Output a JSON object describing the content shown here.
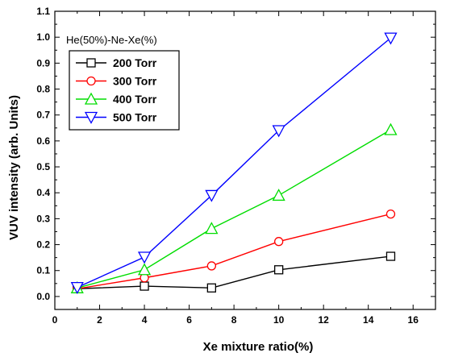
{
  "chart_data": {
    "type": "line",
    "xlabel": "Xe mixture ratio(%)",
    "ylabel": "VUV intensity (arb. Units)",
    "annotation": "He(50%)-Ne-Xe(%)",
    "xlim": [
      0,
      17
    ],
    "ylim": [
      -0.05,
      1.1
    ],
    "x_ticks": [
      "0",
      "2",
      "4",
      "6",
      "8",
      "10",
      "12",
      "14",
      "16"
    ],
    "y_ticks": [
      "0.0",
      "0.1",
      "0.2",
      "0.3",
      "0.4",
      "0.5",
      "0.6",
      "0.7",
      "0.8",
      "0.9",
      "1.0",
      "1.1"
    ],
    "x": [
      1,
      4,
      7,
      10,
      15
    ],
    "legend_position": "top-left",
    "grid": false,
    "series": [
      {
        "name": "200 Torr",
        "values": [
          0.03,
          0.04,
          0.033,
          0.103,
          0.155
        ],
        "color": "#000000",
        "marker": "square"
      },
      {
        "name": "300 Torr",
        "values": [
          0.03,
          0.072,
          0.118,
          0.212,
          0.318
        ],
        "color": "#ff0000",
        "marker": "circle"
      },
      {
        "name": "400 Torr",
        "values": [
          0.033,
          0.103,
          0.262,
          0.39,
          0.643
        ],
        "color": "#00dd00",
        "marker": "triangle-up"
      },
      {
        "name": "500 Torr",
        "values": [
          0.035,
          0.152,
          0.39,
          0.64,
          0.997
        ],
        "color": "#0000ff",
        "marker": "triangle-down"
      }
    ]
  }
}
